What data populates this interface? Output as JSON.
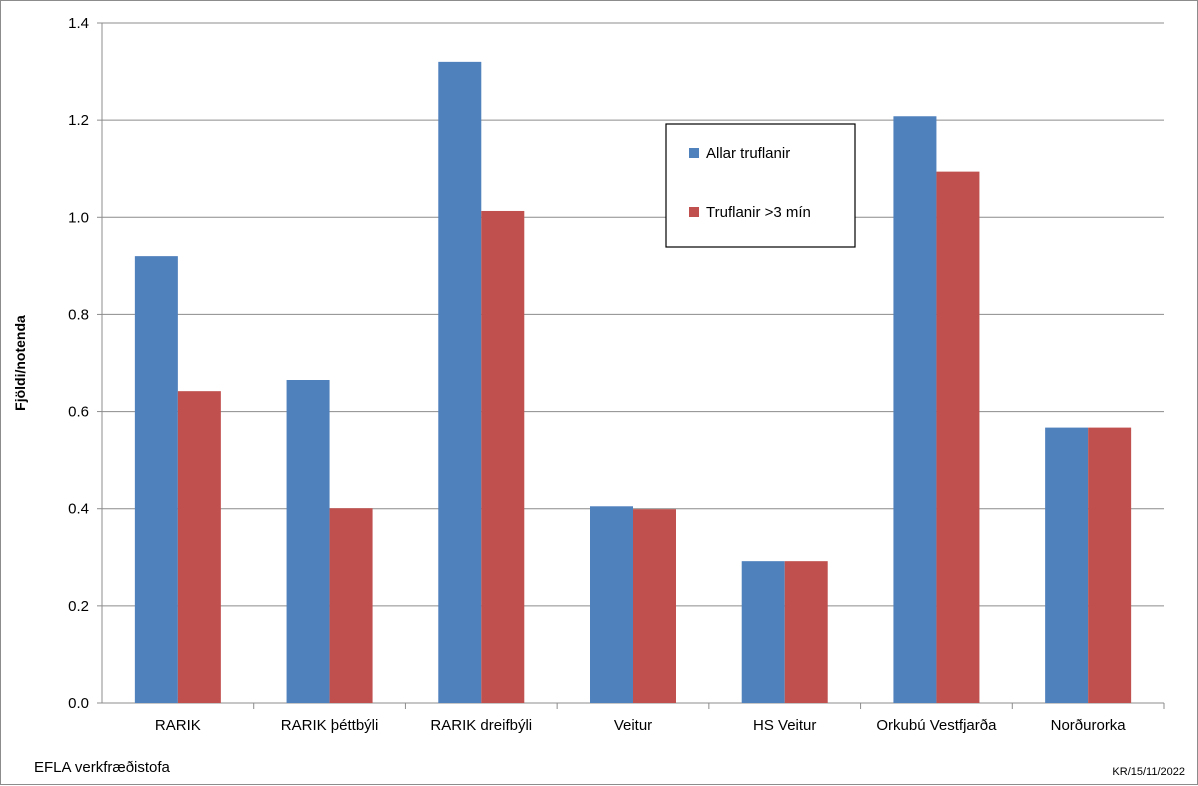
{
  "chart_data": {
    "type": "bar",
    "categories": [
      "RARIK",
      "RARIK þéttbýli",
      "RARIK dreifbýli",
      "Veitur",
      "HS Veitur",
      "Orkubú Vestfjarða",
      "Norðurorka"
    ],
    "series": [
      {
        "name": "Allar truflanir",
        "color": "#4F81BD",
        "values": [
          0.92,
          0.665,
          1.32,
          0.405,
          0.292,
          1.208,
          0.567
        ]
      },
      {
        "name": "Truflanir >3 mín",
        "color": "#C0504D",
        "values": [
          0.642,
          0.401,
          1.013,
          0.399,
          0.292,
          1.094,
          0.567
        ]
      }
    ],
    "ylabel": "Fjöldi/notenda",
    "xlabel": "",
    "ylim": [
      0,
      1.4
    ],
    "yticks": [
      "0.0",
      "0.2",
      "0.4",
      "0.6",
      "0.8",
      "1.0",
      "1.2",
      "1.4"
    ],
    "grid": true,
    "legend_position": "upper-center"
  },
  "footer": {
    "left": "EFLA verkfræðistofa",
    "right": "KR/15/11/2022"
  }
}
